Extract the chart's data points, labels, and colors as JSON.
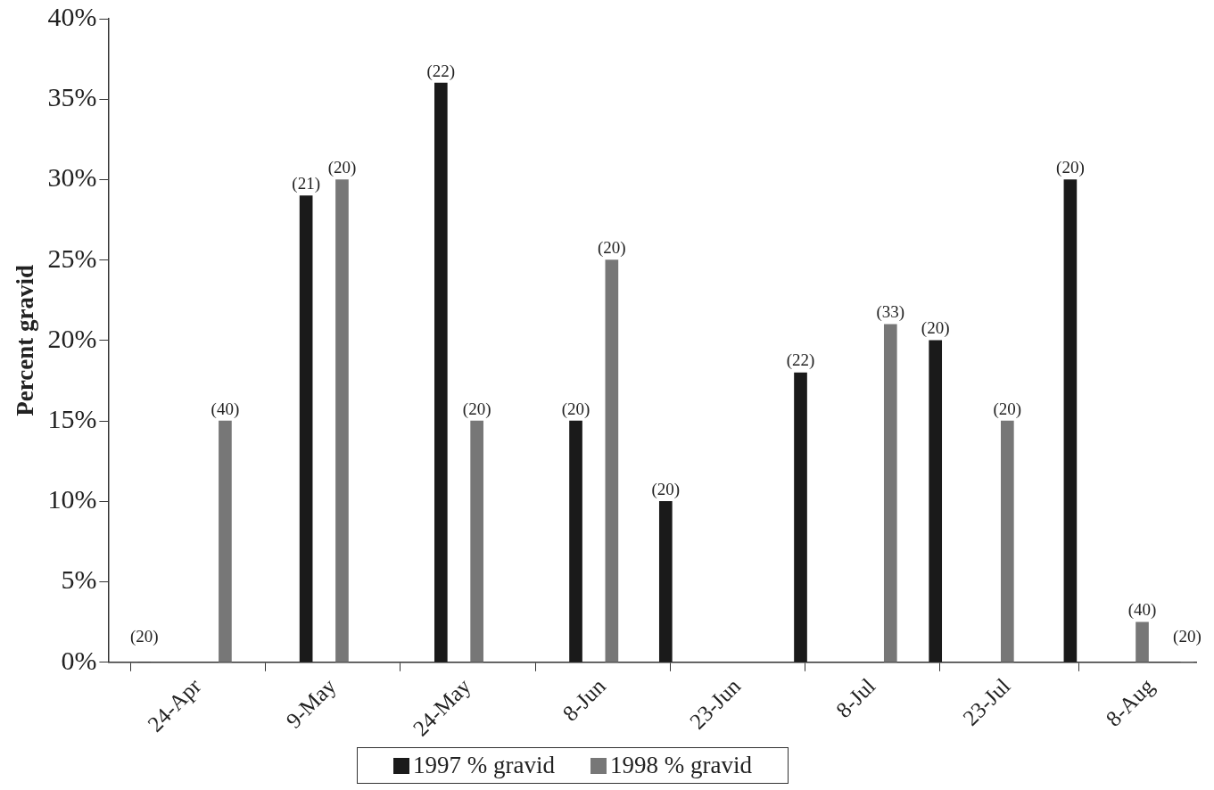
{
  "chart_data": {
    "type": "bar",
    "ylabel": "Percent gravid",
    "series": [
      {
        "name": "1997 % gravid",
        "color": "#1a1a1a",
        "x": [
          "--04-18",
          "--05-06",
          "--05-21",
          "--06-05",
          "--06-15",
          "--06-30",
          "--07-15",
          "--07-30"
        ],
        "values": [
          0,
          29,
          36,
          15,
          10,
          18,
          20,
          30
        ]
      },
      {
        "name": "1998 % gravid",
        "color": "#777777",
        "x": [
          "--04-27",
          "--05-10",
          "--05-25",
          "--06-09",
          "--07-10",
          "--07-23",
          "--08-07",
          "--08-12"
        ],
        "values": [
          15,
          30,
          15,
          25,
          21,
          15,
          2.5,
          0
        ]
      }
    ],
    "xlim": [
      "--04-14",
      "--08-13"
    ],
    "xticks": [
      {
        "value": "--04-24",
        "label": "24-Apr"
      },
      {
        "value": "--05-09",
        "label": "9-May"
      },
      {
        "value": "--05-24",
        "label": "24-May"
      },
      {
        "value": "--06-08",
        "label": "8-Jun"
      },
      {
        "value": "--06-23",
        "label": "23-Jun"
      },
      {
        "value": "--07-08",
        "label": "8-Jul"
      },
      {
        "value": "--07-23",
        "label": "23-Jul"
      },
      {
        "value": "--08-08",
        "label": "8-Aug"
      }
    ],
    "ylim": [
      0,
      40
    ],
    "yticks": [
      {
        "value": 0,
        "label": "0%"
      },
      {
        "value": 5,
        "label": "5%"
      },
      {
        "value": 10,
        "label": "10%"
      },
      {
        "value": 15,
        "label": "15%"
      },
      {
        "value": 20,
        "label": "20%"
      },
      {
        "value": 25,
        "label": "25%"
      },
      {
        "value": 30,
        "label": "30%"
      },
      {
        "value": 35,
        "label": "35%"
      },
      {
        "value": 40,
        "label": "40%"
      }
    ],
    "grid": false,
    "legend": "bottom",
    "annotations": [
      {
        "text": "(20)",
        "x": "--04-18",
        "y": 0
      },
      {
        "text": "(40)",
        "x": "--04-27",
        "y": 15
      },
      {
        "text": "(21)",
        "x": "--05-06",
        "y": 29
      },
      {
        "text": "(20)",
        "x": "--05-10",
        "y": 30
      },
      {
        "text": "(22)",
        "x": "--05-21",
        "y": 36
      },
      {
        "text": "(20)",
        "x": "--05-25",
        "y": 15
      },
      {
        "text": "(20)",
        "x": "--06-05",
        "y": 15
      },
      {
        "text": "(20)",
        "x": "--06-09",
        "y": 25
      },
      {
        "text": "(20)",
        "x": "--06-15",
        "y": 10
      },
      {
        "text": "(22)",
        "x": "--06-30",
        "y": 18
      },
      {
        "text": "(33)",
        "x": "--07-10",
        "y": 21
      },
      {
        "text": "(20)",
        "x": "--07-15",
        "y": 20
      },
      {
        "text": "(20)",
        "x": "--07-23",
        "y": 15
      },
      {
        "text": "(20)",
        "x": "--07-30",
        "y": 30
      },
      {
        "text": "(40)",
        "x": "--08-07",
        "y": 2.5
      },
      {
        "text": "(20)",
        "x": "--08-12",
        "y": 0
      }
    ]
  }
}
